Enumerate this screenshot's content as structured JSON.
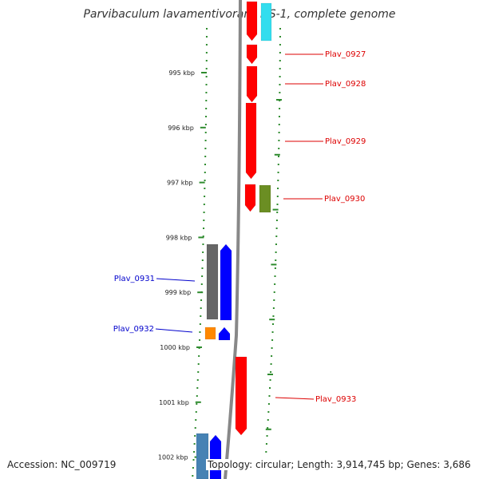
{
  "title": "Parvibaculum lavamentivorans DS-1, complete genome",
  "footer": {
    "accession": "Accession: NC_009719",
    "summary": "Topology: circular; Length: 3,914,745 bp; Genes: 3,686"
  },
  "ticks": [
    {
      "label": "995 kbp",
      "pos": 995
    },
    {
      "label": "996 kbp",
      "pos": 996
    },
    {
      "label": "997 kbp",
      "pos": 997
    },
    {
      "label": "998 kbp",
      "pos": 998
    },
    {
      "label": "999 kbp",
      "pos": 999
    },
    {
      "label": "1000 kbp",
      "pos": 1000
    },
    {
      "label": "1001 kbp",
      "pos": 1001
    },
    {
      "label": "1002 kbp",
      "pos": 1002
    }
  ],
  "gene_labels": [
    {
      "name": "Plav_0927",
      "color": "#dd0000"
    },
    {
      "name": "Plav_0928",
      "color": "#dd0000"
    },
    {
      "name": "Plav_0929",
      "color": "#dd0000"
    },
    {
      "name": "Plav_0930",
      "color": "#dd0000"
    },
    {
      "name": "Plav_0931",
      "color": "#0000cc"
    },
    {
      "name": "Plav_0932",
      "color": "#0000cc"
    },
    {
      "name": "Plav_0933",
      "color": "#dd0000"
    }
  ],
  "colors": {
    "forward_gene": "#ff0000",
    "reverse_gene": "#0000ff",
    "track_dots": "#2e8b2e",
    "backbone": "#888888",
    "cyan_feature": "#33ddee",
    "olive_feature": "#6b8e23",
    "gray_feature": "#666666",
    "orange_feature": "#ff8800",
    "steel_feature": "#4682b4"
  }
}
